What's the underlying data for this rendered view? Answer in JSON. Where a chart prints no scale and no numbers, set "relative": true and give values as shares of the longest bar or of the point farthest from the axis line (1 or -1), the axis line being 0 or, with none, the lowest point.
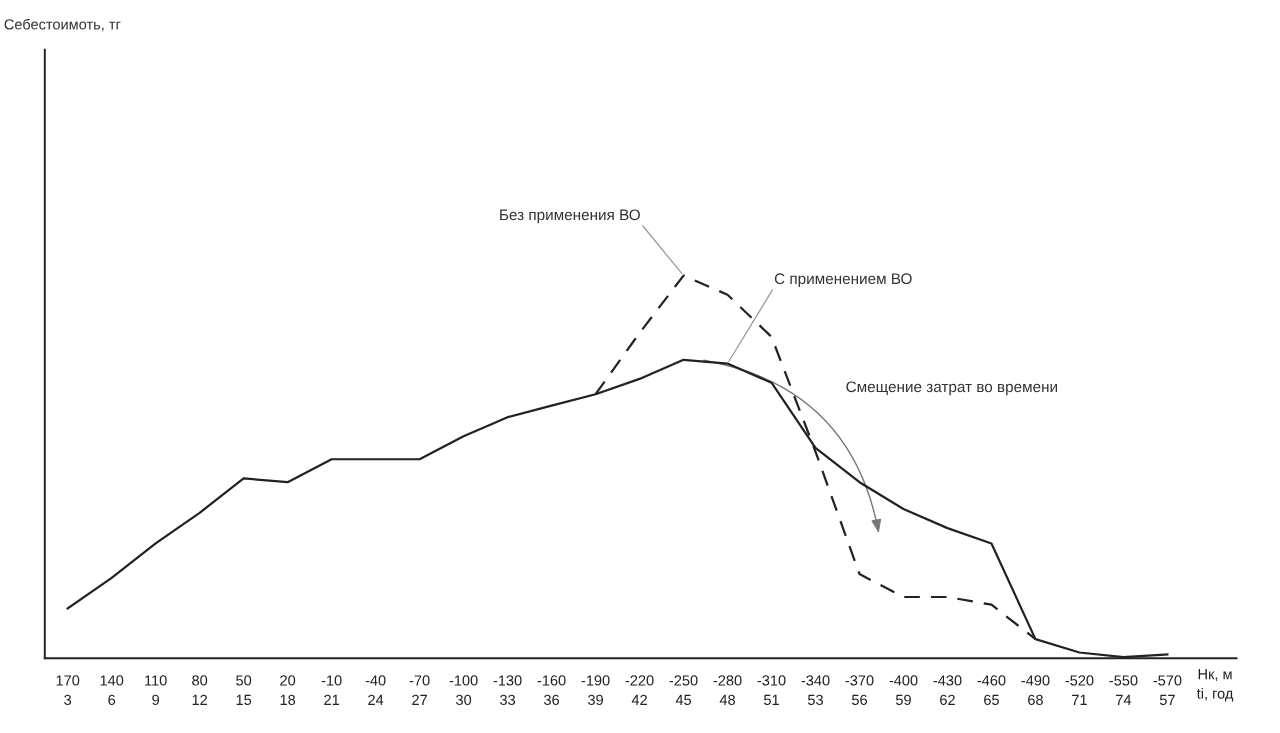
{
  "chart_data": {
    "type": "line",
    "relative": true,
    "xlabel": "Нк, м\nti, год",
    "categories": [
      "170\n3",
      "140\n6",
      "110\n9",
      "80\n12",
      "50\n15",
      "20\n18",
      "-10\n21",
      "-40\n24",
      "-70\n27",
      "-100\n30",
      "-130\n33",
      "-160\n36",
      "-190\n39",
      "-220\n42",
      "-250\n45",
      "-280\n48",
      "-310\n51",
      "-340\n53",
      "-370\n56",
      "-400\n59",
      "-430\n62",
      "-460\n65",
      "-490\n68",
      "-520\n71",
      "-550\n74",
      "-570\n57"
    ],
    "series": [
      {
        "name": "С применением ВО",
        "color": "#222222",
        "line_style": "solid",
        "values": [
          0.13,
          0.21,
          0.3,
          0.38,
          0.47,
          0.46,
          0.52,
          0.52,
          0.52,
          0.58,
          0.63,
          0.66,
          0.69,
          0.73,
          0.78,
          0.77,
          0.72,
          0.55,
          0.46,
          0.39,
          0.34,
          0.3,
          0.05,
          0.015,
          0.003,
          0.01
        ]
      },
      {
        "name": "Без применения ВО",
        "color": "#222222",
        "line_style": "dashed",
        "values": [
          null,
          null,
          null,
          null,
          null,
          null,
          null,
          null,
          null,
          null,
          null,
          null,
          0.69,
          0.85,
          1.0,
          0.95,
          0.84,
          0.54,
          0.22,
          0.16,
          0.16,
          0.14,
          0.05,
          null,
          null,
          null
        ]
      }
    ],
    "annotations": [
      "Себестоимоть, тг",
      "Смещение затрат во времени"
    ],
    "marker": "none",
    "grid": false,
    "legend": false
  }
}
